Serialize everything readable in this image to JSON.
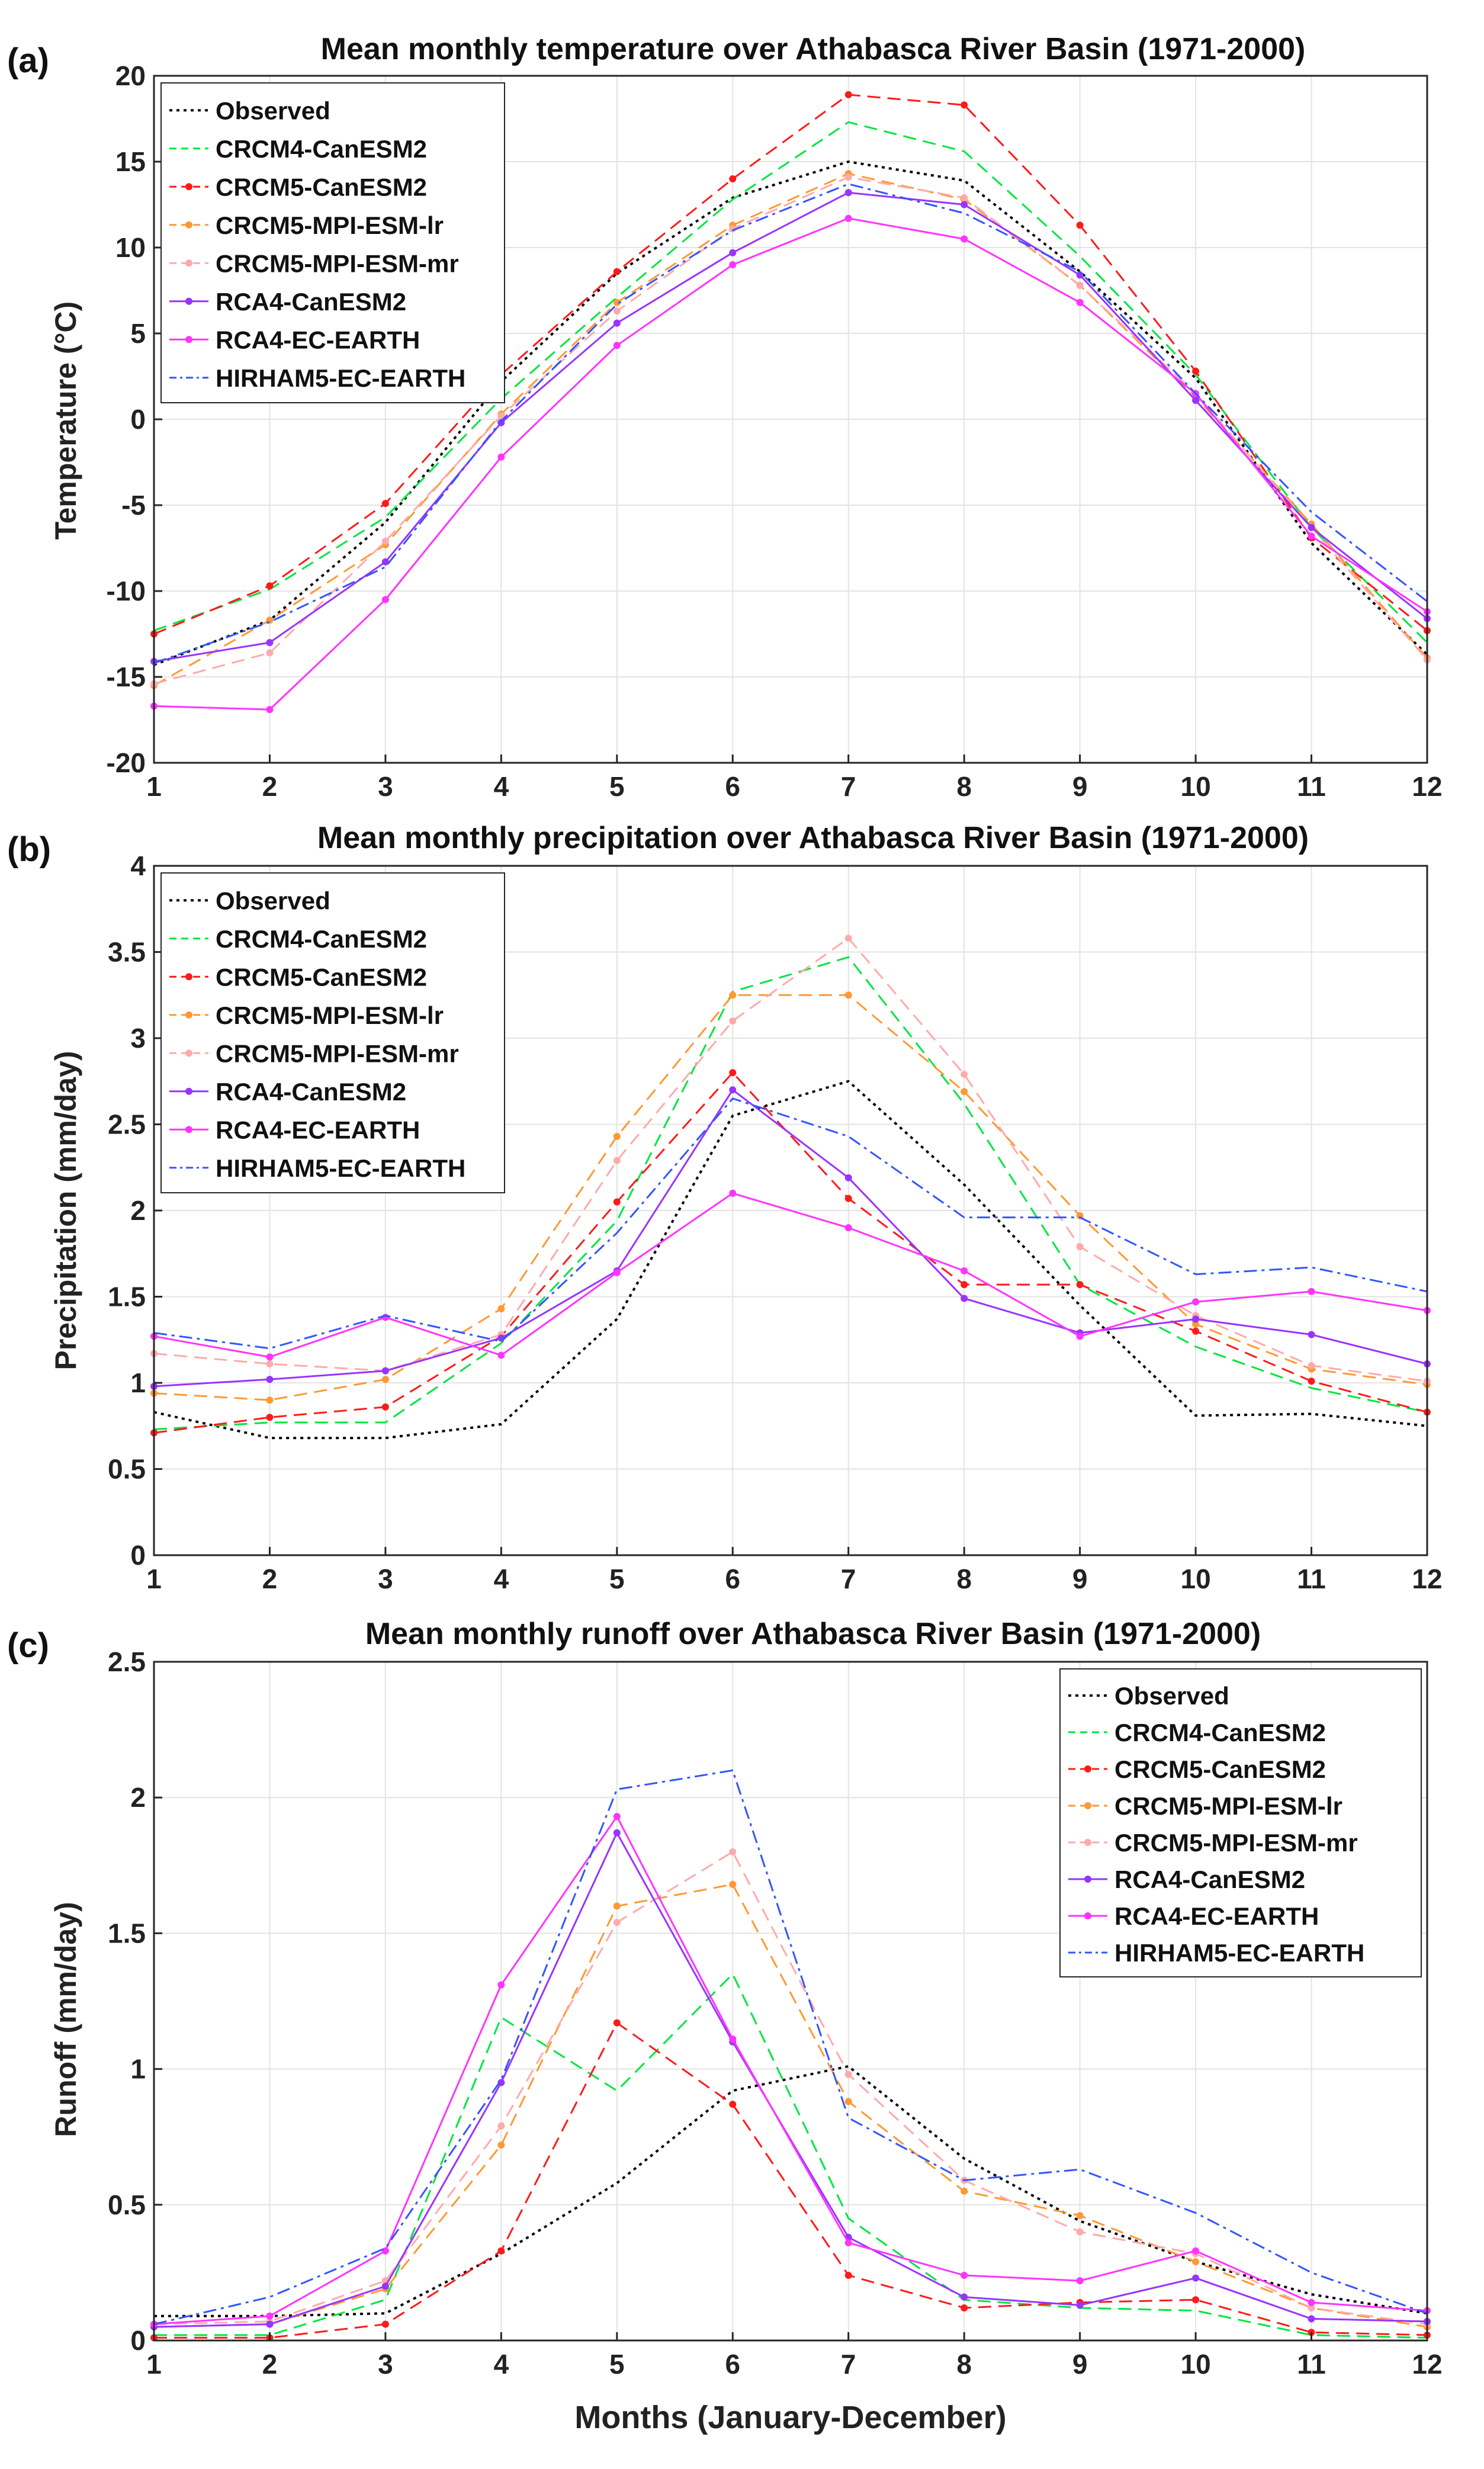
{
  "figure": {
    "xlabel": "Months (January-December)"
  },
  "chart_data": [
    {
      "panel_label": "(a)",
      "type": "line",
      "title": "Mean monthly temperature over Athabasca River Basin (1971-2000)",
      "xlabel": "",
      "ylabel": "Temperature (°C)",
      "x": [
        1,
        2,
        3,
        4,
        5,
        6,
        7,
        8,
        9,
        10,
        11,
        12
      ],
      "xlim": [
        1,
        12
      ],
      "ylim": [
        -20,
        20
      ],
      "yticks": [
        -20,
        -15,
        -10,
        -5,
        0,
        5,
        10,
        15,
        20
      ],
      "grid": true,
      "legend_position": "top-left",
      "series": [
        {
          "name": "Observed",
          "color": "#000000",
          "style": "dotted",
          "marker": false,
          "values": [
            -14.3,
            -11.7,
            -6.0,
            2.2,
            8.5,
            12.9,
            15.0,
            13.9,
            8.6,
            2.4,
            -7.2,
            -13.7
          ]
        },
        {
          "name": "CRCM4-CanESM2",
          "color": "#00e640",
          "style": "dashed",
          "marker": false,
          "values": [
            -12.3,
            -9.9,
            -5.7,
            1.2,
            7.1,
            12.8,
            17.3,
            15.6,
            9.5,
            2.6,
            -6.3,
            -13.0
          ]
        },
        {
          "name": "CRCM5-CanESM2",
          "color": "#ff1a1a",
          "style": "dashed",
          "marker": true,
          "values": [
            -12.5,
            -9.7,
            -4.9,
            2.6,
            8.6,
            14.0,
            18.9,
            18.3,
            11.3,
            2.8,
            -6.9,
            -12.3
          ]
        },
        {
          "name": "CRCM5-MPI-ESM-lr",
          "color": "#ff9933",
          "style": "dashed",
          "marker": true,
          "values": [
            -15.5,
            -11.7,
            -7.3,
            0.3,
            6.8,
            11.3,
            14.3,
            12.8,
            7.8,
            1.3,
            -6.1,
            -13.9
          ]
        },
        {
          "name": "CRCM5-MPI-ESM-mr",
          "color": "#ffaaaa",
          "style": "dashed",
          "marker": true,
          "values": [
            -15.4,
            -13.6,
            -7.1,
            0.2,
            6.3,
            11.1,
            14.1,
            12.9,
            7.8,
            1.5,
            -6.3,
            -14.0
          ]
        },
        {
          "name": "RCA4-CanESM2",
          "color": "#9933ff",
          "style": "solid",
          "marker": true,
          "values": [
            -14.1,
            -13.0,
            -8.3,
            -0.2,
            5.6,
            9.7,
            13.2,
            12.5,
            8.4,
            1.1,
            -6.3,
            -11.6
          ]
        },
        {
          "name": "RCA4-EC-EARTH",
          "color": "#ff33ff",
          "style": "solid",
          "marker": true,
          "values": [
            -16.7,
            -16.9,
            -10.5,
            -2.2,
            4.3,
            9.0,
            11.7,
            10.5,
            6.8,
            1.5,
            -6.8,
            -11.2
          ]
        },
        {
          "name": "HIRHAM5-EC-EARTH",
          "color": "#3355ff",
          "style": "dashdot",
          "marker": false,
          "values": [
            -14.2,
            -11.8,
            -8.6,
            -0.1,
            6.7,
            11.0,
            13.7,
            12.0,
            8.6,
            1.5,
            -5.4,
            -10.6
          ]
        }
      ]
    },
    {
      "panel_label": "(b)",
      "type": "line",
      "title": "Mean monthly precipitation over Athabasca River Basin (1971-2000)",
      "xlabel": "",
      "ylabel": "Precipitation (mm/day)",
      "x": [
        1,
        2,
        3,
        4,
        5,
        6,
        7,
        8,
        9,
        10,
        11,
        12
      ],
      "xlim": [
        1,
        12
      ],
      "ylim": [
        0,
        4
      ],
      "yticks": [
        0,
        0.5,
        1,
        1.5,
        2,
        2.5,
        3,
        3.5,
        4
      ],
      "grid": true,
      "legend_position": "top-left",
      "series": [
        {
          "name": "Observed",
          "color": "#000000",
          "style": "dotted",
          "marker": false,
          "values": [
            0.83,
            0.68,
            0.68,
            0.76,
            1.37,
            2.55,
            2.75,
            2.15,
            1.45,
            0.81,
            0.82,
            0.75
          ]
        },
        {
          "name": "CRCM4-CanESM2",
          "color": "#00e640",
          "style": "dashed",
          "marker": false,
          "values": [
            0.73,
            0.77,
            0.77,
            1.23,
            1.94,
            3.27,
            3.47,
            2.62,
            1.57,
            1.21,
            0.97,
            0.83
          ]
        },
        {
          "name": "CRCM5-CanESM2",
          "color": "#ff1a1a",
          "style": "dashed",
          "marker": true,
          "values": [
            0.71,
            0.8,
            0.86,
            1.27,
            2.05,
            2.8,
            2.07,
            1.57,
            1.57,
            1.3,
            1.01,
            0.83
          ]
        },
        {
          "name": "CRCM5-MPI-ESM-lr",
          "color": "#ff9933",
          "style": "dashed",
          "marker": true,
          "values": [
            0.94,
            0.9,
            1.02,
            1.43,
            2.43,
            3.25,
            3.25,
            2.69,
            1.97,
            1.34,
            1.08,
            0.99
          ]
        },
        {
          "name": "CRCM5-MPI-ESM-mr",
          "color": "#ffaaaa",
          "style": "dashed",
          "marker": true,
          "values": [
            1.17,
            1.11,
            1.07,
            1.28,
            2.29,
            3.1,
            3.58,
            2.79,
            1.79,
            1.39,
            1.1,
            1.01
          ]
        },
        {
          "name": "RCA4-CanESM2",
          "color": "#9933ff",
          "style": "solid",
          "marker": true,
          "values": [
            0.98,
            1.02,
            1.07,
            1.26,
            1.65,
            2.7,
            2.19,
            1.49,
            1.29,
            1.37,
            1.28,
            1.11
          ]
        },
        {
          "name": "RCA4-EC-EARTH",
          "color": "#ff33ff",
          "style": "solid",
          "marker": true,
          "values": [
            1.27,
            1.15,
            1.38,
            1.16,
            1.64,
            2.1,
            1.9,
            1.65,
            1.27,
            1.47,
            1.53,
            1.42
          ]
        },
        {
          "name": "HIRHAM5-EC-EARTH",
          "color": "#3355ff",
          "style": "dashdot",
          "marker": false,
          "values": [
            1.29,
            1.2,
            1.39,
            1.24,
            1.87,
            2.65,
            2.43,
            1.96,
            1.96,
            1.63,
            1.67,
            1.53
          ]
        }
      ]
    },
    {
      "panel_label": "(c)",
      "type": "line",
      "title": "Mean monthly runoff over Athabasca River Basin (1971-2000)",
      "xlabel": "Months (January-December)",
      "ylabel": "Runoff (mm/day)",
      "x": [
        1,
        2,
        3,
        4,
        5,
        6,
        7,
        8,
        9,
        10,
        11,
        12
      ],
      "xlim": [
        1,
        12
      ],
      "ylim": [
        0,
        2.5
      ],
      "yticks": [
        0,
        0.5,
        1,
        1.5,
        2,
        2.5
      ],
      "grid": true,
      "legend_position": "top-right",
      "series": [
        {
          "name": "Observed",
          "color": "#000000",
          "style": "dotted",
          "marker": false,
          "values": [
            0.09,
            0.09,
            0.1,
            0.32,
            0.58,
            0.92,
            1.01,
            0.67,
            0.44,
            0.29,
            0.17,
            0.1
          ]
        },
        {
          "name": "CRCM4-CanESM2",
          "color": "#00e640",
          "style": "dashed",
          "marker": false,
          "values": [
            0.02,
            0.02,
            0.15,
            1.19,
            0.92,
            1.35,
            0.45,
            0.15,
            0.12,
            0.11,
            0.02,
            0.01
          ]
        },
        {
          "name": "CRCM5-CanESM2",
          "color": "#ff1a1a",
          "style": "dashed",
          "marker": true,
          "values": [
            0.01,
            0.01,
            0.06,
            0.33,
            1.17,
            0.87,
            0.24,
            0.12,
            0.14,
            0.15,
            0.03,
            0.02
          ]
        },
        {
          "name": "CRCM5-MPI-ESM-lr",
          "color": "#ff9933",
          "style": "dashed",
          "marker": true,
          "values": [
            0.05,
            0.06,
            0.19,
            0.72,
            1.6,
            1.68,
            0.88,
            0.55,
            0.46,
            0.29,
            0.12,
            0.05
          ]
        },
        {
          "name": "CRCM5-MPI-ESM-mr",
          "color": "#ffaaaa",
          "style": "dashed",
          "marker": true,
          "values": [
            0.06,
            0.07,
            0.22,
            0.79,
            1.54,
            1.8,
            0.98,
            0.59,
            0.4,
            0.32,
            0.12,
            0.06
          ]
        },
        {
          "name": "RCA4-CanESM2",
          "color": "#9933ff",
          "style": "solid",
          "marker": true,
          "values": [
            0.05,
            0.06,
            0.2,
            0.95,
            1.87,
            1.1,
            0.38,
            0.16,
            0.13,
            0.23,
            0.08,
            0.07
          ]
        },
        {
          "name": "RCA4-EC-EARTH",
          "color": "#ff33ff",
          "style": "solid",
          "marker": true,
          "values": [
            0.06,
            0.09,
            0.33,
            1.31,
            1.93,
            1.11,
            0.36,
            0.24,
            0.22,
            0.33,
            0.14,
            0.11
          ]
        },
        {
          "name": "HIRHAM5-EC-EARTH",
          "color": "#3355ff",
          "style": "dashdot",
          "marker": false,
          "values": [
            0.06,
            0.16,
            0.34,
            0.96,
            2.03,
            2.1,
            0.82,
            0.59,
            0.63,
            0.47,
            0.25,
            0.1
          ]
        }
      ]
    }
  ]
}
